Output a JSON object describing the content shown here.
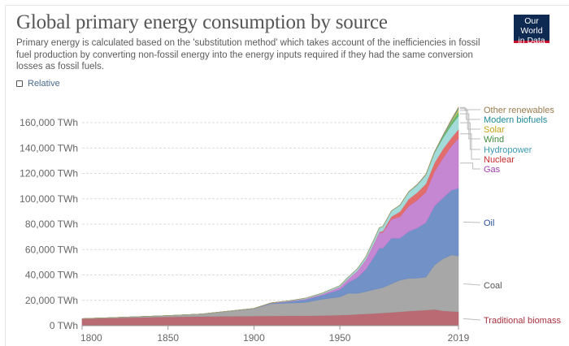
{
  "header": {
    "title": "Global primary energy consumption by source",
    "subtitle": "Primary energy is calculated based on the 'substitution method' which takes account of the inefficiencies in fossil fuel production by converting non-fossil energy into the energy inputs required if they had the same conversion losses as fossil fuels.",
    "logo_line1": "Our World",
    "logo_line2": "in Data",
    "relative_label": "Relative"
  },
  "chart_data": {
    "type": "area",
    "stacked": true,
    "title": "Global primary energy consumption by source",
    "xlabel": "",
    "ylabel": "",
    "xlim": [
      1800,
      2019
    ],
    "ylim": [
      0,
      170000
    ],
    "grid": true,
    "legend_placement": "right",
    "y_ticks": [
      0,
      20000,
      40000,
      60000,
      80000,
      100000,
      120000,
      140000,
      160000
    ],
    "y_tick_labels": [
      "0 TWh",
      "20,000 TWh",
      "40,000 TWh",
      "60,000 TWh",
      "80,000 TWh",
      "100,000 TWh",
      "120,000 TWh",
      "140,000 TWh",
      "160,000 TWh"
    ],
    "x_ticks": [
      1800,
      1850,
      1900,
      1950,
      2019
    ],
    "x_tick_labels": [
      "1800",
      "1850",
      "1900",
      "1950",
      "2019"
    ],
    "x": [
      1800,
      1850,
      1870,
      1900,
      1910,
      1920,
      1930,
      1940,
      1950,
      1955,
      1960,
      1965,
      1970,
      1973,
      1975,
      1980,
      1985,
      1990,
      1995,
      2000,
      2005,
      2010,
      2015,
      2019
    ],
    "series": [
      {
        "name": "Traditional biomass",
        "color": "#b5626a",
        "label_color": "#a8313f",
        "values": [
          5500,
          7000,
          7300,
          7600,
          7700,
          7800,
          7900,
          8000,
          8300,
          8600,
          9000,
          9300,
          9600,
          9900,
          10100,
          10500,
          11000,
          11500,
          12000,
          12300,
          12800,
          11800,
          11300,
          11100
        ]
      },
      {
        "name": "Coal",
        "color": "#a2a2a2",
        "label_color": "#555555",
        "values": [
          100,
          1000,
          2000,
          5700,
          9600,
          10000,
          10500,
          13000,
          14500,
          17000,
          16500,
          17500,
          19000,
          19500,
          20000,
          22500,
          25000,
          25800,
          25500,
          26000,
          35000,
          41000,
          44500,
          43800
        ]
      },
      {
        "name": "Oil",
        "color": "#6a8bc4",
        "label_color": "#2c4f9a",
        "values": [
          0,
          0,
          0,
          200,
          400,
          1200,
          2200,
          3200,
          5700,
          8600,
          12300,
          17500,
          26000,
          32000,
          31000,
          36000,
          33000,
          37000,
          39500,
          43000,
          46500,
          48000,
          51000,
          53600
        ]
      },
      {
        "name": "Gas",
        "color": "#c27fd0",
        "label_color": "#a73cb6",
        "values": [
          0,
          0,
          0,
          70,
          200,
          300,
          600,
          900,
          2100,
          3000,
          5200,
          7500,
          10500,
          12000,
          12500,
          15000,
          17000,
          20000,
          22000,
          24000,
          27000,
          31500,
          35000,
          39300
        ]
      },
      {
        "name": "Nuclear",
        "color": "#e06565",
        "label_color": "#c42a2a",
        "values": [
          0,
          0,
          0,
          0,
          0,
          0,
          0,
          0,
          0,
          0,
          0,
          100,
          300,
          600,
          1000,
          2000,
          4000,
          5500,
          6000,
          6500,
          7000,
          7000,
          6500,
          6900
        ]
      },
      {
        "name": "Hydropower",
        "color": "#9ed8d8",
        "label_color": "#3d9ab4",
        "values": [
          0,
          0,
          0,
          50,
          150,
          300,
          500,
          700,
          1000,
          1300,
          1700,
          2200,
          3000,
          3300,
          3600,
          4400,
          5000,
          5500,
          6000,
          6900,
          7700,
          8800,
          10000,
          10500
        ]
      },
      {
        "name": "Wind",
        "color": "#5eb466",
        "label_color": "#3d8d3d",
        "values": [
          0,
          0,
          0,
          0,
          0,
          0,
          0,
          0,
          0,
          0,
          0,
          0,
          0,
          0,
          0,
          0,
          0,
          10,
          20,
          80,
          300,
          900,
          2300,
          3500
        ]
      },
      {
        "name": "Solar",
        "color": "#e6c84a",
        "label_color": "#c8a219",
        "values": [
          0,
          0,
          0,
          0,
          0,
          0,
          0,
          0,
          0,
          0,
          0,
          0,
          0,
          0,
          0,
          0,
          0,
          0,
          0,
          0,
          10,
          100,
          700,
          1800
        ]
      },
      {
        "name": "Modern biofuels",
        "color": "#3c9fa8",
        "label_color": "#1d8a99",
        "values": [
          0,
          0,
          0,
          0,
          0,
          0,
          0,
          0,
          0,
          0,
          0,
          0,
          0,
          0,
          0,
          50,
          100,
          150,
          200,
          250,
          400,
          800,
          950,
          1100
        ]
      },
      {
        "name": "Other renewables",
        "color": "#b09464",
        "label_color": "#9a7b4d",
        "values": [
          0,
          0,
          0,
          0,
          0,
          0,
          0,
          0,
          0,
          0,
          0,
          0,
          0,
          0,
          0,
          50,
          100,
          150,
          200,
          250,
          300,
          400,
          500,
          600
        ]
      }
    ]
  }
}
